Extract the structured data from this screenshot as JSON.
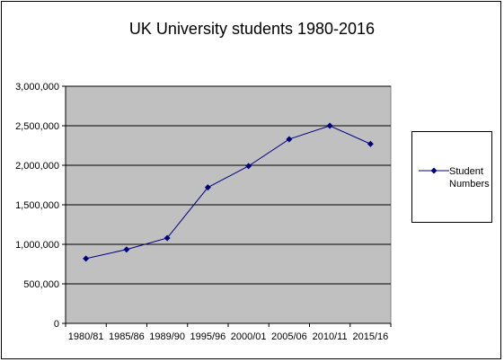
{
  "chart_data": {
    "type": "line",
    "title": "UK University students 1980-2016",
    "xlabel": "",
    "ylabel": "",
    "categories": [
      "1980/81",
      "1985/86",
      "1989/90",
      "1995/96",
      "2000/01",
      "2005/06",
      "2010/11",
      "2015/16"
    ],
    "y_ticks": [
      "0",
      "500,000",
      "1,000,000",
      "1,500,000",
      "2,000,000",
      "2,500,000",
      "3,000,000"
    ],
    "ylim": [
      0,
      3000000
    ],
    "grid": true,
    "plot_background": "#c0c0c0",
    "legend_position": "right",
    "series": [
      {
        "name": "Student Numbers",
        "color": "#000080",
        "values": [
          820000,
          935000,
          1080000,
          1720000,
          1990000,
          2330000,
          2500000,
          2270000
        ]
      }
    ]
  }
}
